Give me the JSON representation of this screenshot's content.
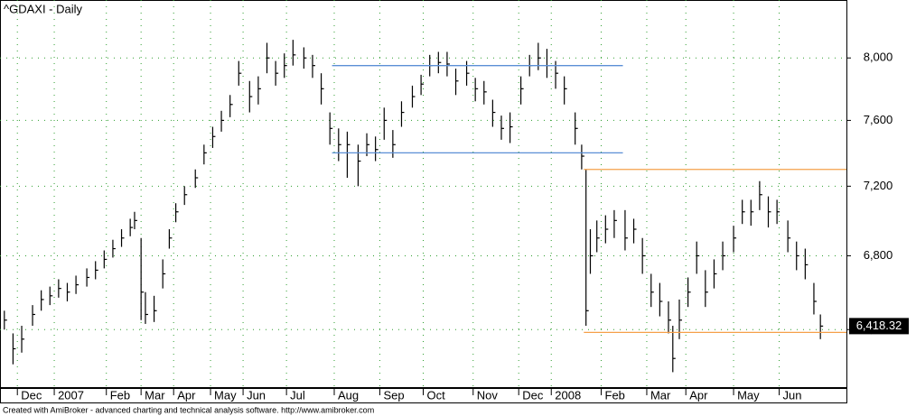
{
  "chart_data": {
    "type": "ohlc",
    "title": "^GDAXI - Daily",
    "footer": "Created with AmiBroker - advanced charting and technical analysis software. http://www.amibroker.com",
    "x": [
      2,
      6,
      10,
      15,
      19,
      23,
      27,
      31,
      35,
      40,
      44,
      48,
      52,
      56,
      60,
      62,
      65,
      67,
      71,
      75,
      78,
      81,
      85,
      90,
      94,
      98,
      102,
      106,
      110,
      115,
      119,
      123,
      127,
      131,
      135,
      140,
      144,
      148,
      152,
      156,
      160,
      165,
      169,
      173,
      177,
      181,
      185,
      190,
      194,
      198,
      202,
      206,
      210,
      215,
      219,
      223,
      227,
      231,
      235,
      240,
      244,
      248,
      252,
      256,
      260,
      265,
      268,
      270,
      272,
      275,
      279,
      283,
      288,
      292,
      296,
      300,
      304,
      308,
      310,
      313,
      317,
      321,
      325,
      329,
      333,
      338,
      342,
      346,
      350,
      354,
      358,
      363,
      367,
      371,
      375,
      378
    ],
    "high": [
      6500,
      6380,
      6420,
      6530,
      6610,
      6630,
      6670,
      6650,
      6690,
      6730,
      6770,
      6830,
      6890,
      6950,
      7010,
      7050,
      6900,
      6600,
      6580,
      6780,
      6950,
      7100,
      7200,
      7300,
      7450,
      7560,
      7660,
      7760,
      7980,
      7850,
      7880,
      8100,
      7980,
      8030,
      8120,
      8070,
      8020,
      7900,
      7650,
      7550,
      7530,
      7450,
      7520,
      7500,
      7680,
      7540,
      7720,
      7820,
      7890,
      8020,
      8040,
      8040,
      7930,
      7980,
      7870,
      7850,
      7730,
      7630,
      7650,
      7880,
      8020,
      8100,
      8060,
      7980,
      7880,
      7650,
      7450,
      7300,
      6950,
      7000,
      7030,
      7060,
      7060,
      7010,
      6900,
      6700,
      6650,
      6550,
      6420,
      6560,
      6680,
      6880,
      6720,
      6780,
      6880,
      6970,
      7120,
      7120,
      7230,
      7140,
      7120,
      7000,
      6880,
      6840,
      6650,
      6480
    ],
    "low": [
      6400,
      6220,
      6280,
      6420,
      6500,
      6530,
      6570,
      6550,
      6590,
      6630,
      6670,
      6730,
      6790,
      6850,
      6910,
      6950,
      6450,
      6430,
      6440,
      6620,
      6840,
      6990,
      7090,
      7190,
      7330,
      7430,
      7530,
      7620,
      7820,
      7650,
      7700,
      7900,
      7820,
      7870,
      7950,
      7930,
      7870,
      7700,
      7450,
      7350,
      7250,
      7200,
      7380,
      7350,
      7480,
      7370,
      7560,
      7680,
      7760,
      7880,
      7900,
      7880,
      7760,
      7820,
      7720,
      7700,
      7560,
      7480,
      7460,
      7700,
      7880,
      7920,
      7870,
      7800,
      7700,
      7450,
      7300,
      6420,
      6700,
      6820,
      6870,
      6900,
      6830,
      6870,
      6700,
      6520,
      6470,
      6380,
      6180,
      6350,
      6520,
      6700,
      6520,
      6620,
      6720,
      6820,
      6980,
      6970,
      7060,
      6960,
      6980,
      6820,
      6720,
      6670,
      6480,
      6350
    ],
    "close": [
      6450,
      6300,
      6350,
      6480,
      6560,
      6580,
      6620,
      6600,
      6640,
      6680,
      6720,
      6780,
      6840,
      6900,
      6960,
      7000,
      6600,
      6480,
      6500,
      6700,
      6900,
      7050,
      7150,
      7250,
      7400,
      7500,
      7600,
      7700,
      7900,
      7750,
      7800,
      8000,
      7900,
      7950,
      8020,
      8000,
      7950,
      7800,
      7550,
      7450,
      7450,
      7350,
      7450,
      7420,
      7600,
      7450,
      7650,
      7750,
      7830,
      7950,
      7970,
      7960,
      7850,
      7900,
      7800,
      7780,
      7650,
      7550,
      7560,
      7800,
      7950,
      8000,
      7950,
      7900,
      7800,
      7550,
      7380,
      6500,
      6800,
      6900,
      6950,
      7000,
      6900,
      6950,
      6800,
      6600,
      6550,
      6450,
      6250,
      6450,
      6600,
      6800,
      6600,
      6700,
      6800,
      6900,
      7050,
      7050,
      7150,
      7050,
      7050,
      6900,
      6800,
      6750,
      6550,
      6418.32
    ],
    "color": "#000000",
    "current_price": {
      "value": 6418.32,
      "label": "6,418.32"
    },
    "xlim": [
      0,
      390
    ],
    "xticks": [
      {
        "value": 8,
        "label": "Dec"
      },
      {
        "value": 25,
        "label": "2007"
      },
      {
        "value": 49,
        "label": "Feb"
      },
      {
        "value": 65,
        "label": "Mar"
      },
      {
        "value": 80,
        "label": "Apr"
      },
      {
        "value": 97,
        "label": "May"
      },
      {
        "value": 112,
        "label": "Jun"
      },
      {
        "value": 132,
        "label": "Jul"
      },
      {
        "value": 154,
        "label": "Aug"
      },
      {
        "value": 175,
        "label": "Sep"
      },
      {
        "value": 195,
        "label": "Oct"
      },
      {
        "value": 218,
        "label": "Nov"
      },
      {
        "value": 239,
        "label": "Dec"
      },
      {
        "value": 254,
        "label": "2008"
      },
      {
        "value": 277,
        "label": "Feb"
      },
      {
        "value": 298,
        "label": "Mar"
      },
      {
        "value": 316,
        "label": "Apr"
      },
      {
        "value": 338,
        "label": "May"
      },
      {
        "value": 359,
        "label": "Jun"
      }
    ],
    "ylim": [
      6100,
      8390
    ],
    "log_scale": true,
    "yticks": [
      {
        "value": 6400,
        "label": "6,400"
      },
      {
        "value": 6800,
        "label": "6,800"
      },
      {
        "value": 7200,
        "label": "7,200"
      },
      {
        "value": 7600,
        "label": "7,600"
      },
      {
        "value": 8000,
        "label": "8,000"
      }
    ],
    "grid": true,
    "grid_color": "#2e9e2e",
    "trendlines": [
      {
        "x": [
          153,
          287
        ],
        "y": [
          7950,
          7950
        ],
        "color": "#5b8fd6"
      },
      {
        "x": [
          153,
          287
        ],
        "y": [
          7400,
          7400
        ],
        "color": "#5b8fd6"
      },
      {
        "x": [
          269,
          390
        ],
        "y": [
          7300,
          7300
        ],
        "color": "#f5a04a"
      },
      {
        "x": [
          269,
          390
        ],
        "y": [
          6385,
          6385
        ],
        "color": "#f5a04a"
      }
    ]
  }
}
